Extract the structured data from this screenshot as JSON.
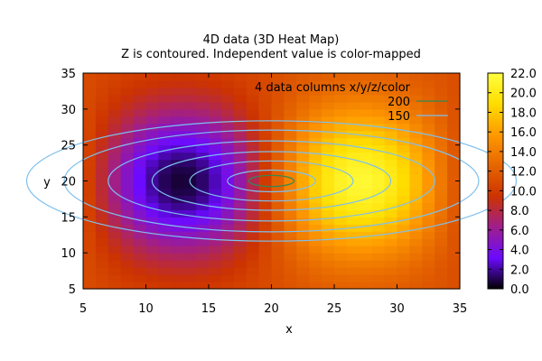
{
  "chart_data": {
    "type": "heatmap",
    "title": "4D data (3D Heat Map)",
    "subtitle": "Z is contoured. Independent value is color-mapped",
    "xlabel": "x",
    "ylabel": "y",
    "xlim": [
      5,
      35
    ],
    "ylim": [
      5,
      35
    ],
    "x_ticks": [
      "5",
      "10",
      "15",
      "20",
      "25",
      "30",
      "35"
    ],
    "y_ticks": [
      "5",
      "10",
      "15",
      "20",
      "25",
      "30",
      "35"
    ],
    "color_field": {
      "min": 0.0,
      "max": 22.0,
      "low_point": {
        "x": 12.5,
        "value": 0.0
      },
      "high_point": {
        "x": 27.5,
        "value": 22.0
      },
      "edge_value": 11.0
    },
    "colorbar": {
      "min": 0.0,
      "max": 22.0,
      "ticks": [
        "0.0",
        "2.0",
        "4.0",
        "6.0",
        "8.0",
        "10.0",
        "12.0",
        "14.0",
        "16.0",
        "18.0",
        "20.0",
        "22.0"
      ],
      "palette": [
        "#000000",
        "#6b0aff",
        "#a01e8c",
        "#cc3300",
        "#e66600",
        "#ff9900",
        "#ffdd00",
        "#ffff40"
      ]
    },
    "contours": {
      "center": {
        "x": 20,
        "y": 20
      },
      "x_to_y_ratio": 2.33,
      "series": [
        {
          "name": "200",
          "level": 200,
          "color": "#2e8b57",
          "half_width_x": 1.8
        },
        {
          "name": "150",
          "level": 150,
          "color": "#7ec0ee",
          "half_width_x": [
            3.5,
            6.5,
            9.5,
            13.0,
            16.5,
            19.5
          ]
        }
      ]
    },
    "legend": {
      "title": "4 data columns x/y/z/color",
      "placement": "top-right",
      "entries": [
        "200",
        "150"
      ]
    },
    "grid": false
  }
}
